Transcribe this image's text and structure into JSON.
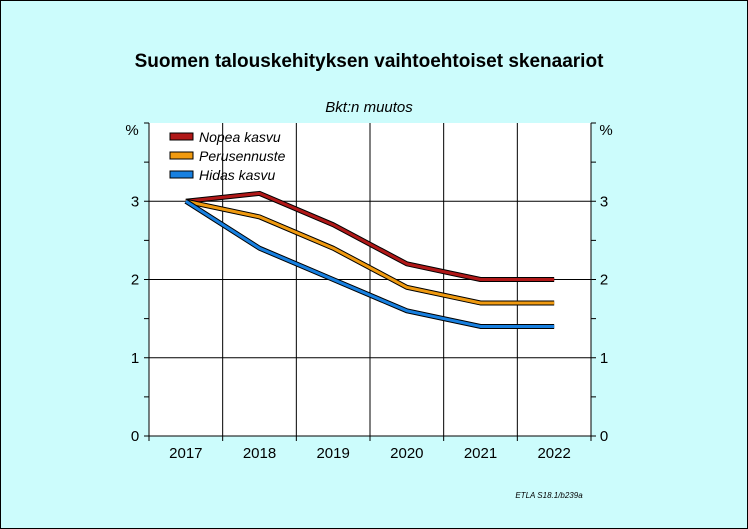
{
  "chart_data": {
    "type": "line",
    "title": "Suomen talouskehityksen vaihtoehtoiset skenaariot",
    "subtitle": "Bkt:n muutos",
    "y_unit_left": "%",
    "y_unit_right": "%",
    "ylim": [
      0,
      4
    ],
    "y_ticks": [
      0,
      1,
      2,
      3
    ],
    "y_tick_labels": [
      "0",
      "1",
      "2",
      "3"
    ],
    "x": [
      "2017",
      "2018",
      "2019",
      "2020",
      "2021",
      "2022"
    ],
    "grid": true,
    "legend_position": "top-left",
    "series": [
      {
        "name": "Nopea kasvu",
        "color": "#b01818",
        "values": [
          3.0,
          3.1,
          2.7,
          2.2,
          2.0,
          2.0
        ]
      },
      {
        "name": "Perusennuste",
        "color": "#f09a10",
        "values": [
          3.0,
          2.8,
          2.4,
          1.9,
          1.7,
          1.7
        ]
      },
      {
        "name": "Hidas kasvu",
        "color": "#1880e0",
        "values": [
          3.0,
          2.4,
          2.0,
          1.6,
          1.4,
          1.4
        ]
      }
    ],
    "source": "ETLA S18.1/b239a"
  },
  "colors": {
    "background": "#ccfcfc",
    "plot_area": "#ffffff",
    "grid": "#000000"
  }
}
